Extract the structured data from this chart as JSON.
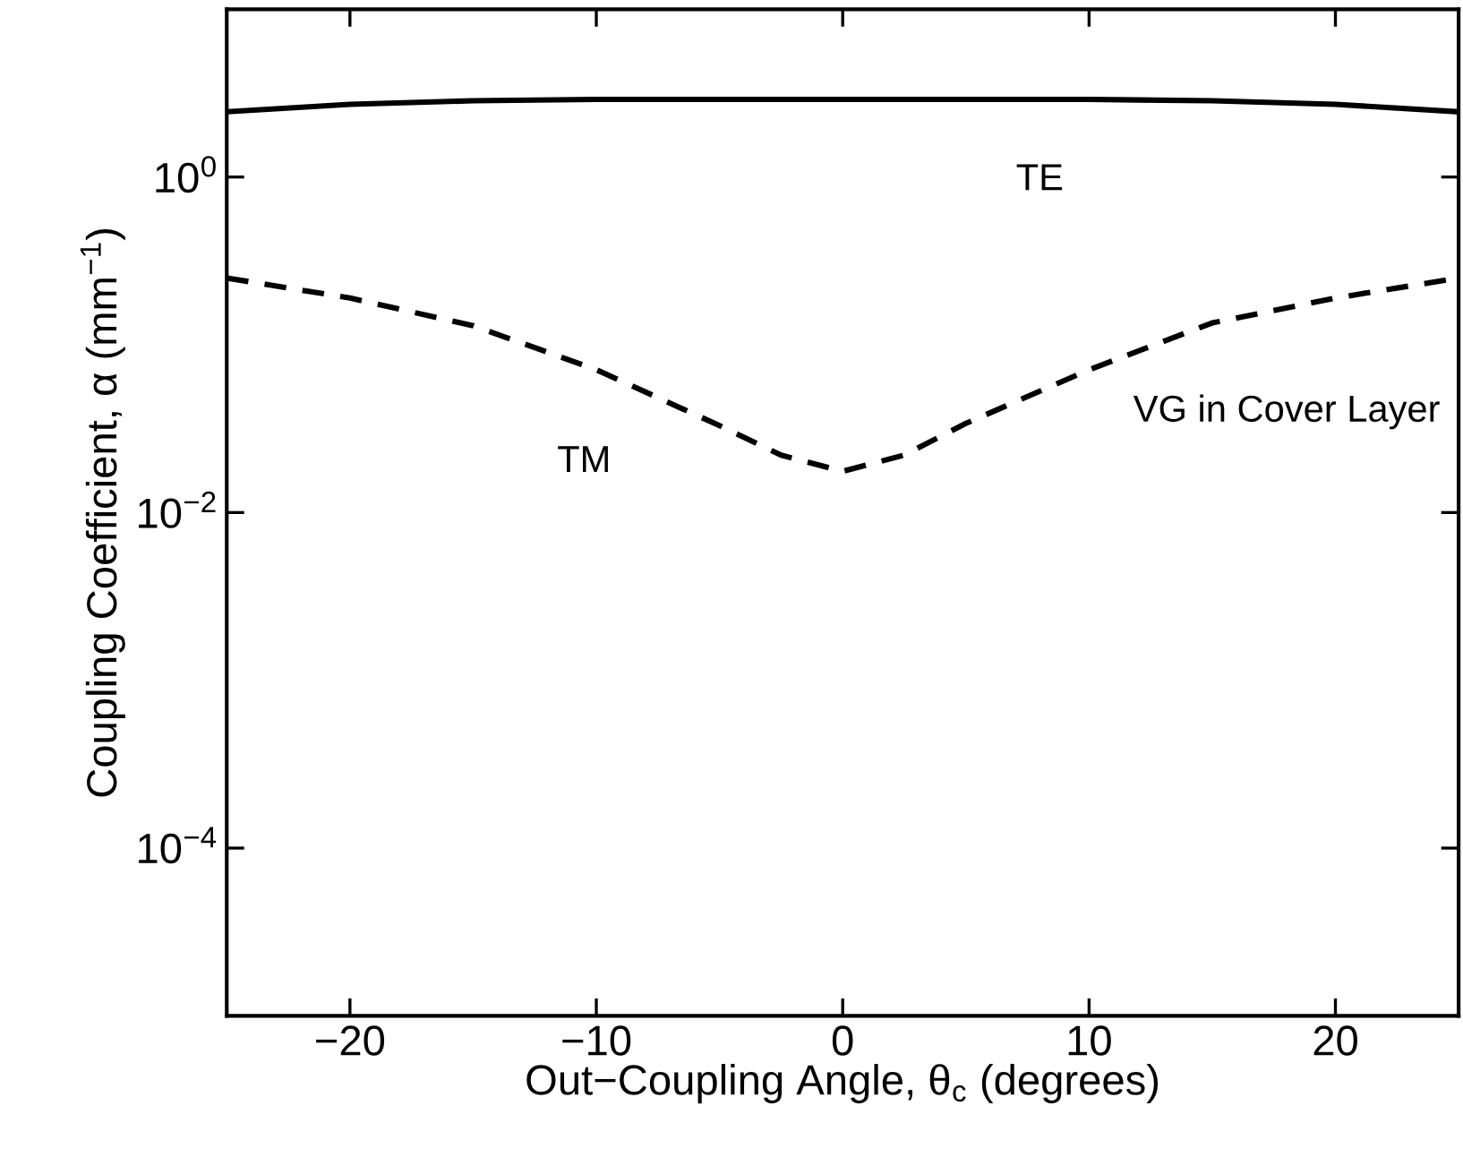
{
  "chart_data": {
    "type": "line",
    "xlabel": "Out−Coupling Angle, θ$_{c}$ (degrees)",
    "ylabel": "Coupling Coefficient, α (mm$^{−1}$)",
    "x": [
      -25,
      -20,
      -15,
      -10,
      -5,
      -2.5,
      0,
      2.5,
      5,
      10,
      15,
      20,
      25
    ],
    "series": [
      {
        "name": "TE",
        "color": "#000000",
        "line_style": "solid",
        "values": [
          2.45,
          2.71,
          2.85,
          2.9,
          2.9,
          2.9,
          2.9,
          2.9,
          2.9,
          2.9,
          2.85,
          2.71,
          2.45
        ]
      },
      {
        "name": "TM",
        "color": "#000000",
        "line_style": "dashed",
        "values": [
          0.25,
          0.19,
          0.13,
          0.071,
          0.033,
          0.022,
          0.0176,
          0.022,
          0.034,
          0.071,
          0.135,
          0.19,
          0.25
        ]
      }
    ],
    "log": "y",
    "xlim": [
      -25,
      25
    ],
    "ylim": [
      1e-05,
      10
    ],
    "xticks": [
      {
        "value": -20,
        "label": "−20"
      },
      {
        "value": -10,
        "label": "−10"
      },
      0,
      10,
      20
    ],
    "yticks": [
      {
        "value": 1,
        "label": "10$^{0}$"
      },
      {
        "value": 0.01,
        "label": "10$^{−2}$"
      },
      {
        "value": 0.0001,
        "label": "10$^{−4}$"
      }
    ],
    "grid": false,
    "legend": false,
    "annotations": [
      "VG in Cover Layer"
    ]
  }
}
